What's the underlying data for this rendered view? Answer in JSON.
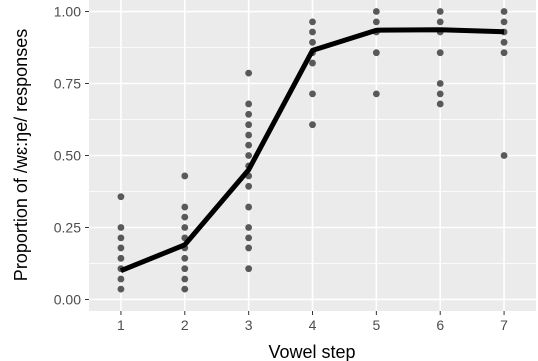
{
  "chart_data": {
    "type": "scatter",
    "xlabel": "Vowel step",
    "ylabel": "Proportion of /wɛ:ŋe/ responses",
    "xlim": [
      0.5,
      7.5
    ],
    "ylim": [
      -0.04,
      1.04
    ],
    "x_ticks": [
      1,
      2,
      3,
      4,
      5,
      6,
      7
    ],
    "x_tick_labels": [
      "1",
      "2",
      "3",
      "4",
      "5",
      "6",
      "7"
    ],
    "y_ticks": [
      0,
      0.25,
      0.5,
      0.75,
      1
    ],
    "y_tick_labels": [
      "0.00",
      "0.25",
      "0.50",
      "0.75",
      "1.00"
    ],
    "grid": true,
    "series": [
      {
        "kind": "points",
        "color": "#595959",
        "points": [
          [
            1,
            0.357
          ],
          [
            1,
            0.25
          ],
          [
            1,
            0.214
          ],
          [
            1,
            0.179
          ],
          [
            1,
            0.143
          ],
          [
            1,
            0.107
          ],
          [
            1,
            0.071
          ],
          [
            1,
            0.036
          ],
          [
            2,
            0.429
          ],
          [
            2,
            0.321
          ],
          [
            2,
            0.286
          ],
          [
            2,
            0.25
          ],
          [
            2,
            0.214
          ],
          [
            2,
            0.179
          ],
          [
            2,
            0.143
          ],
          [
            2,
            0.107
          ],
          [
            2,
            0.071
          ],
          [
            2,
            0.036
          ],
          [
            3,
            0.786
          ],
          [
            3,
            0.679
          ],
          [
            3,
            0.643
          ],
          [
            3,
            0.607
          ],
          [
            3,
            0.571
          ],
          [
            3,
            0.536
          ],
          [
            3,
            0.5
          ],
          [
            3,
            0.464
          ],
          [
            3,
            0.429
          ],
          [
            3,
            0.393
          ],
          [
            3,
            0.321
          ],
          [
            3,
            0.25
          ],
          [
            3,
            0.214
          ],
          [
            3,
            0.179
          ],
          [
            3,
            0.107
          ],
          [
            4,
            0.964
          ],
          [
            4,
            0.929
          ],
          [
            4,
            0.893
          ],
          [
            4,
            0.857
          ],
          [
            4,
            0.821
          ],
          [
            4,
            0.714
          ],
          [
            4,
            0.607
          ],
          [
            5,
            1.0
          ],
          [
            5,
            0.964
          ],
          [
            5,
            0.929
          ],
          [
            5,
            0.857
          ],
          [
            5,
            0.714
          ],
          [
            6,
            1.0
          ],
          [
            6,
            0.964
          ],
          [
            6,
            0.929
          ],
          [
            6,
            0.857
          ],
          [
            6,
            0.75
          ],
          [
            6,
            0.714
          ],
          [
            6,
            0.679
          ],
          [
            7,
            1.0
          ],
          [
            7,
            0.964
          ],
          [
            7,
            0.929
          ],
          [
            7,
            0.893
          ],
          [
            7,
            0.857
          ],
          [
            7,
            0.5
          ]
        ]
      },
      {
        "kind": "line",
        "color": "#000000",
        "x": [
          1,
          2,
          3,
          4,
          5,
          6,
          7
        ],
        "y": [
          0.1,
          0.19,
          0.45,
          0.865,
          0.935,
          0.937,
          0.93
        ]
      }
    ]
  }
}
